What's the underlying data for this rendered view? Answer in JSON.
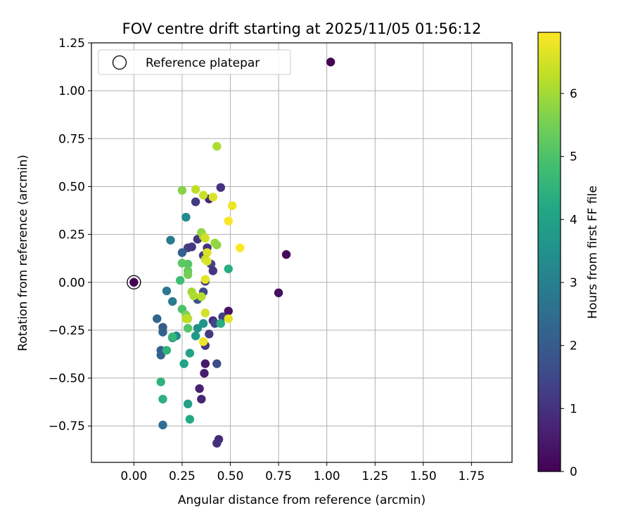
{
  "chart_data": {
    "type": "scatter",
    "title": "FOV centre drift starting at 2025/11/05 01:56:12",
    "xlabel": "Angular distance from reference (arcmin)",
    "ylabel": "Rotation from reference (arcmin)",
    "xlim": [
      -0.22,
      1.96
    ],
    "ylim": [
      -0.94,
      1.25
    ],
    "xticks": [
      0.0,
      0.25,
      0.5,
      0.75,
      1.0,
      1.25,
      1.5,
      1.75
    ],
    "xtick_labels": [
      "0.00",
      "0.25",
      "0.50",
      "0.75",
      "1.00",
      "1.25",
      "1.50",
      "1.75"
    ],
    "yticks": [
      -0.75,
      -0.5,
      -0.25,
      0.0,
      0.25,
      0.5,
      0.75,
      1.0,
      1.25
    ],
    "ytick_labels": [
      "−0.75",
      "−0.50",
      "−0.25",
      "0.00",
      "0.25",
      "0.50",
      "0.75",
      "1.00",
      "1.25"
    ],
    "grid": true,
    "legend": {
      "position": "top-left",
      "entries": [
        "Reference platepar"
      ]
    },
    "reference_point": {
      "x": 0.0,
      "y": 0.0
    },
    "colorbar": {
      "label": "Hours from first FF file",
      "range": [
        0,
        6.97
      ],
      "ticks": [
        0,
        1,
        2,
        3,
        4,
        5,
        6
      ],
      "tick_labels": [
        "0",
        "1",
        "2",
        "3",
        "4",
        "5",
        "6"
      ],
      "colormap": "viridis"
    },
    "points": [
      {
        "x": 1.02,
        "y": 1.15,
        "h": 0.05
      },
      {
        "x": 0.79,
        "y": 0.145,
        "h": 0.15
      },
      {
        "x": 0.75,
        "y": -0.055,
        "h": 0.25
      },
      {
        "x": 0.49,
        "y": -0.15,
        "h": 0.35
      },
      {
        "x": 0.37,
        "y": -0.425,
        "h": 0.45
      },
      {
        "x": 0.365,
        "y": -0.475,
        "h": 0.55
      },
      {
        "x": 0.34,
        "y": -0.555,
        "h": 0.65
      },
      {
        "x": 0.35,
        "y": -0.61,
        "h": 0.75
      },
      {
        "x": 0.44,
        "y": -0.82,
        "h": 0.85
      },
      {
        "x": 0.43,
        "y": -0.84,
        "h": 0.95
      },
      {
        "x": 0.45,
        "y": 0.495,
        "h": 1.0
      },
      {
        "x": 0.39,
        "y": 0.435,
        "h": 0.8
      },
      {
        "x": 0.32,
        "y": 0.42,
        "h": 1.2
      },
      {
        "x": 0.33,
        "y": 0.225,
        "h": 1.1
      },
      {
        "x": 0.28,
        "y": 0.18,
        "h": 1.3
      },
      {
        "x": 0.3,
        "y": 0.185,
        "h": 1.15
      },
      {
        "x": 0.38,
        "y": 0.18,
        "h": 1.0
      },
      {
        "x": 0.36,
        "y": 0.14,
        "h": 1.25
      },
      {
        "x": 0.4,
        "y": 0.095,
        "h": 1.4
      },
      {
        "x": 0.41,
        "y": 0.06,
        "h": 1.1
      },
      {
        "x": 0.41,
        "y": -0.2,
        "h": 0.9
      },
      {
        "x": 0.46,
        "y": -0.18,
        "h": 1.3
      },
      {
        "x": 0.42,
        "y": -0.215,
        "h": 1.5
      },
      {
        "x": 0.39,
        "y": -0.27,
        "h": 1.2
      },
      {
        "x": 0.37,
        "y": -0.33,
        "h": 1.1
      },
      {
        "x": 0.43,
        "y": -0.425,
        "h": 1.6
      },
      {
        "x": 0.36,
        "y": -0.05,
        "h": 1.6
      },
      {
        "x": 0.37,
        "y": 0.005,
        "h": 1.2
      },
      {
        "x": 0.33,
        "y": -0.09,
        "h": 1.8
      },
      {
        "x": 0.25,
        "y": 0.155,
        "h": 2.1
      },
      {
        "x": 0.12,
        "y": -0.19,
        "h": 2.3
      },
      {
        "x": 0.15,
        "y": -0.235,
        "h": 2.0
      },
      {
        "x": 0.15,
        "y": -0.26,
        "h": 2.2
      },
      {
        "x": 0.14,
        "y": -0.355,
        "h": 2.1
      },
      {
        "x": 0.14,
        "y": -0.38,
        "h": 2.2
      },
      {
        "x": 0.15,
        "y": -0.745,
        "h": 2.5
      },
      {
        "x": 0.17,
        "y": -0.045,
        "h": 2.8
      },
      {
        "x": 0.2,
        "y": -0.1,
        "h": 2.9
      },
      {
        "x": 0.19,
        "y": 0.22,
        "h": 2.9
      },
      {
        "x": 0.27,
        "y": 0.34,
        "h": 3.3
      },
      {
        "x": 0.22,
        "y": -0.28,
        "h": 3.2
      },
      {
        "x": 0.2,
        "y": -0.29,
        "h": 3.5
      },
      {
        "x": 0.32,
        "y": -0.28,
        "h": 3.7
      },
      {
        "x": 0.33,
        "y": -0.24,
        "h": 3.5
      },
      {
        "x": 0.36,
        "y": -0.215,
        "h": 3.6
      },
      {
        "x": 0.26,
        "y": -0.425,
        "h": 4.0
      },
      {
        "x": 0.29,
        "y": -0.37,
        "h": 4.0
      },
      {
        "x": 0.28,
        "y": -0.635,
        "h": 3.9
      },
      {
        "x": 0.29,
        "y": -0.715,
        "h": 4.2
      },
      {
        "x": 0.15,
        "y": -0.61,
        "h": 4.4
      },
      {
        "x": 0.14,
        "y": -0.52,
        "h": 4.5
      },
      {
        "x": 0.17,
        "y": -0.355,
        "h": 4.5
      },
      {
        "x": 0.2,
        "y": -0.285,
        "h": 4.6
      },
      {
        "x": 0.45,
        "y": -0.215,
        "h": 4.3
      },
      {
        "x": 0.49,
        "y": 0.07,
        "h": 4.3
      },
      {
        "x": 0.24,
        "y": 0.01,
        "h": 4.8
      },
      {
        "x": 0.25,
        "y": -0.14,
        "h": 5.0
      },
      {
        "x": 0.28,
        "y": -0.24,
        "h": 5.1
      },
      {
        "x": 0.28,
        "y": 0.095,
        "h": 5.1
      },
      {
        "x": 0.25,
        "y": 0.1,
        "h": 5.2
      },
      {
        "x": 0.28,
        "y": 0.06,
        "h": 5.3
      },
      {
        "x": 0.28,
        "y": 0.04,
        "h": 5.5
      },
      {
        "x": 0.27,
        "y": -0.17,
        "h": 5.6
      },
      {
        "x": 0.25,
        "y": 0.48,
        "h": 5.7
      },
      {
        "x": 0.35,
        "y": 0.26,
        "h": 5.8
      },
      {
        "x": 0.42,
        "y": 0.205,
        "h": 5.9
      },
      {
        "x": 0.43,
        "y": 0.195,
        "h": 5.8
      },
      {
        "x": 0.36,
        "y": 0.24,
        "h": 6.0
      },
      {
        "x": 0.3,
        "y": -0.05,
        "h": 6.0
      },
      {
        "x": 0.31,
        "y": -0.07,
        "h": 6.1
      },
      {
        "x": 0.35,
        "y": -0.075,
        "h": 6.2
      },
      {
        "x": 0.28,
        "y": -0.19,
        "h": 6.2
      },
      {
        "x": 0.27,
        "y": -0.19,
        "h": 6.3
      },
      {
        "x": 0.43,
        "y": 0.71,
        "h": 6.1
      },
      {
        "x": 0.32,
        "y": 0.485,
        "h": 6.3
      },
      {
        "x": 0.36,
        "y": 0.455,
        "h": 6.4
      },
      {
        "x": 0.41,
        "y": 0.445,
        "h": 6.6
      },
      {
        "x": 0.37,
        "y": 0.23,
        "h": 6.5
      },
      {
        "x": 0.38,
        "y": 0.155,
        "h": 6.6
      },
      {
        "x": 0.37,
        "y": 0.12,
        "h": 6.4
      },
      {
        "x": 0.38,
        "y": 0.11,
        "h": 6.6
      },
      {
        "x": 0.37,
        "y": 0.015,
        "h": 6.7
      },
      {
        "x": 0.37,
        "y": -0.16,
        "h": 6.5
      },
      {
        "x": 0.36,
        "y": -0.31,
        "h": 6.8
      },
      {
        "x": 0.49,
        "y": -0.19,
        "h": 6.7
      },
      {
        "x": 0.51,
        "y": 0.4,
        "h": 6.8
      },
      {
        "x": 0.49,
        "y": 0.32,
        "h": 6.9
      },
      {
        "x": 0.55,
        "y": 0.18,
        "h": 6.95
      }
    ]
  }
}
